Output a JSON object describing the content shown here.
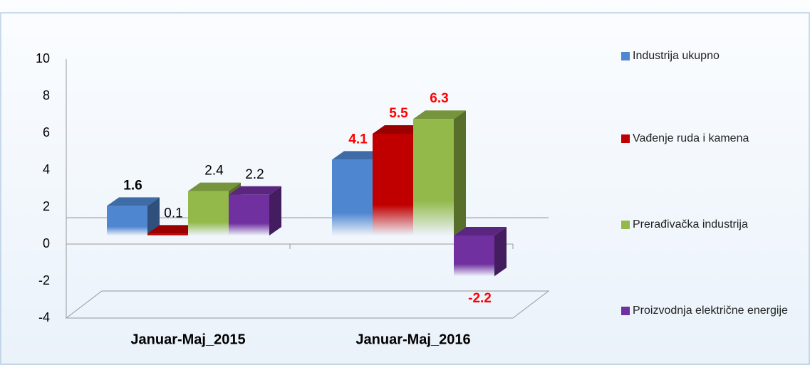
{
  "chart_data": {
    "type": "bar3d",
    "categories": [
      "Januar-Maj_2015",
      "Januar-Maj_2016"
    ],
    "series": [
      {
        "name": "Industrija ukupno",
        "color": "#4f86d0",
        "values": [
          1.6,
          4.1
        ]
      },
      {
        "name": "Vađenje ruda i kamena",
        "color": "#c00000",
        "values": [
          0.1,
          5.5
        ]
      },
      {
        "name": "Prerađivačka industrija",
        "color": "#92b94a",
        "values": [
          2.4,
          6.3
        ]
      },
      {
        "name": "Proizvodnja električne energije",
        "color": "#7030a0",
        "values": [
          2.2,
          -2.2
        ]
      }
    ],
    "value_label_colors": [
      "#000000",
      "#ff0000"
    ],
    "ylim": [
      -4,
      10
    ],
    "yticks": [
      -4,
      -2,
      0,
      2,
      4,
      6,
      8,
      10
    ],
    "legend": "right"
  }
}
